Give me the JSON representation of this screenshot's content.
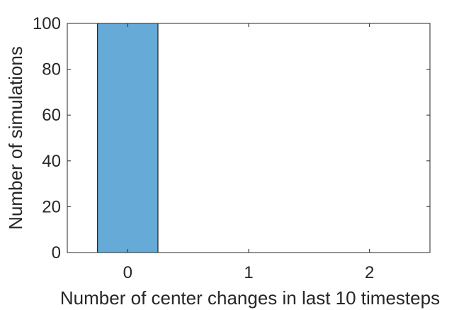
{
  "chart_data": {
    "type": "bar",
    "categories": [
      "0",
      "1",
      "2"
    ],
    "x": [
      0,
      1,
      2
    ],
    "values": [
      100,
      0,
      0
    ],
    "title": "",
    "xlabel": "Number of center changes in last 10 timesteps",
    "ylabel": "Number of simulations",
    "xlim": [
      -0.5,
      2.5
    ],
    "ylim": [
      0,
      100
    ],
    "yticks": [
      0,
      20,
      40,
      60,
      80,
      100
    ],
    "bar_width": 0.5,
    "grid": false,
    "legend": "none",
    "colors": {
      "bar_fill": "#66aad8",
      "bar_edge": "#000000",
      "axis": "#262626"
    }
  }
}
